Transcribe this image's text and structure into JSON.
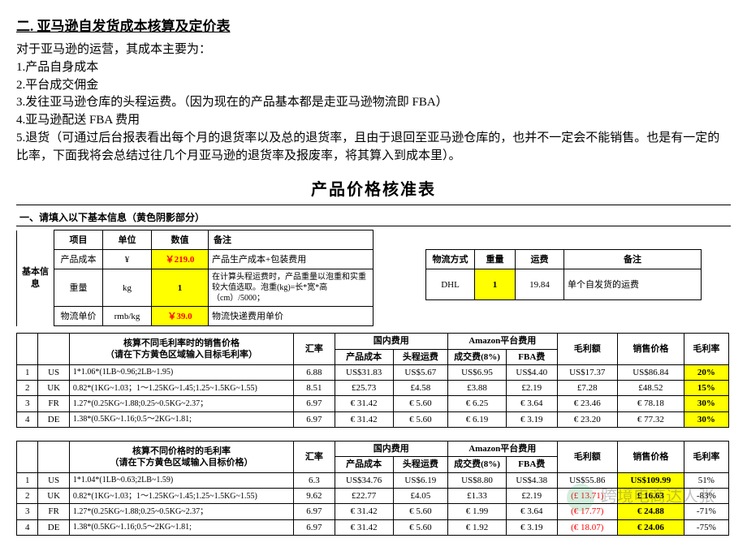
{
  "header": {
    "section_title": "二. 亚马逊自发货成本核算及定价表",
    "lines": [
      "对于亚马逊的运营，其成本主要为：",
      "1.产品自身成本",
      "2.平台成交佣金",
      "3.发往亚马逊仓库的头程运费。（因为现在的产品基本都是走亚马逊物流即 FBA）",
      "4.亚马逊配送 FBA 费用",
      "5.退货（可通过后台报表看出每个月的退货率以及总的退货率，且由于退回至亚马逊仓库的，也并不一定会不能销售。也是有一定的比率，下面我将会总结过往几个月亚马逊的退货率及报废率，将其算入到成本里）。"
    ]
  },
  "main_title": "产品价格核准表",
  "form_heading": "一、请填入以下基本信息（黄色阴影部分）",
  "basic_left": {
    "group_label": "基本信息",
    "headers": [
      "项目",
      "单位",
      "数值",
      "备注"
    ],
    "rows": [
      {
        "item": "产品成本",
        "unit": "¥",
        "value": "￥219.0",
        "note": "产品生产成本+包装费用",
        "yellow": true
      },
      {
        "item": "重量",
        "unit": "kg",
        "value": "1",
        "note": "在计算头程运费时，产品重量以泡重和实重较大值选取。泡重(kg)=长*宽*高（cm）/5000；",
        "yellow": true
      },
      {
        "item": "物流单价",
        "unit": "rmb/kg",
        "value": "￥39.0",
        "note": "物流快递费用单价",
        "yellow": true
      }
    ]
  },
  "basic_right": {
    "headers": [
      "物流方式",
      "重量",
      "运费",
      "备注"
    ],
    "row": {
      "method": "DHL",
      "weight": "1",
      "fee": "19.84",
      "note": "单个自发货的运费"
    }
  },
  "sales_price_table": {
    "title": "核算不同毛利率时的销售价格\n（请在下方黄色区域输入目标毛利率）",
    "top_headers": {
      "rate": "汇率",
      "dom": "国内费用",
      "amz": "Amazon平台费用",
      "gp": "毛利额",
      "sp": "销售价格",
      "mr": "毛利率"
    },
    "sub_headers": {
      "pc": "产品成本",
      "hc": "头程运费",
      "cjf": "成交费(8%)",
      "fba": "FBA费"
    },
    "rows": [
      {
        "idx": "1",
        "cc": "US",
        "formula": "1*1.06*(1LB~0.96;2LB~1.95)",
        "rate": "6.88",
        "pc": "US$31.83",
        "hc": "US$5.67",
        "cjf": "US$6.95",
        "fba": "US$4.40",
        "gp": "US$17.37",
        "sp": "US$86.84",
        "mr": "20%"
      },
      {
        "idx": "2",
        "cc": "UK",
        "formula": "0.82*(1KG~1.03；1～1.25KG~1.45;1.25~1.5KG~1.55)",
        "rate": "8.51",
        "pc": "£25.73",
        "hc": "£4.58",
        "cjf": "£3.88",
        "fba": "£2.19",
        "gp": "£7.28",
        "sp": "£48.52",
        "mr": "15%"
      },
      {
        "idx": "3",
        "cc": "FR",
        "formula": "1.27*(0.25KG~1.88;0.25~0.5KG~2.37；",
        "rate": "6.97",
        "pc": "€ 31.42",
        "hc": "€ 5.60",
        "cjf": "€ 6.25",
        "fba": "€ 3.64",
        "gp": "€ 23.46",
        "sp": "€ 78.18",
        "mr": "30%"
      },
      {
        "idx": "4",
        "cc": "DE",
        "formula": "1.38*(0.5KG~1.16;0.5～2KG~1.81;",
        "rate": "6.97",
        "pc": "€ 31.42",
        "hc": "€ 5.60",
        "cjf": "€ 6.19",
        "fba": "€ 3.19",
        "gp": "€ 23.20",
        "sp": "€ 77.32",
        "mr": "30%"
      }
    ]
  },
  "margin_rate_table": {
    "title": "核算不同价格时的毛利率\n（请在下方黄色区域输入目标价格）",
    "rows": [
      {
        "idx": "1",
        "cc": "US",
        "formula": "1*1.04*(1LB~0.63;2LB~1.59)",
        "rate": "6.3",
        "pc": "US$34.76",
        "hc": "US$6.19",
        "cjf": "US$8.80",
        "fba": "US$4.38",
        "gp": "US$55.86",
        "sp": "US$109.99",
        "mr": "51%"
      },
      {
        "idx": "2",
        "cc": "UK",
        "formula": "0.82*(1KG~1.03；1～1.25KG~1.45;1.25~1.5KG~1.55)",
        "rate": "9.62",
        "pc": "£22.77",
        "hc": "£4.05",
        "cjf": "£1.33",
        "fba": "£2.19",
        "gp": "(£ 13.71)",
        "sp": "£ 16.63",
        "mr": "-83%",
        "gp_red": true,
        "sp_yellow": true
      },
      {
        "idx": "3",
        "cc": "FR",
        "formula": "1.27*(0.25KG~1.88;0.25~0.5KG~2.37；",
        "rate": "6.97",
        "pc": "€ 31.42",
        "hc": "€ 5.60",
        "cjf": "€ 1.99",
        "fba": "€ 3.64",
        "gp": "(€ 17.77)",
        "sp": "€ 24.88",
        "mr": "-71%",
        "gp_red": true,
        "sp_yellow": true
      },
      {
        "idx": "4",
        "cc": "DE",
        "formula": "1.38*(0.5KG~1.16;0.5～2KG~1.81;",
        "rate": "6.97",
        "pc": "€ 31.42",
        "hc": "€ 5.60",
        "cjf": "€ 1.92",
        "fba": "€ 3.19",
        "gp": "(€ 18.07)",
        "sp": "€ 24.06",
        "mr": "-75%",
        "gp_red": true,
        "sp_yellow": true
      }
    ]
  },
  "watermark": "跨境电商达人张",
  "colors": {
    "yellow": "#ffff00",
    "red": "#ff0000",
    "border": "#000000"
  }
}
